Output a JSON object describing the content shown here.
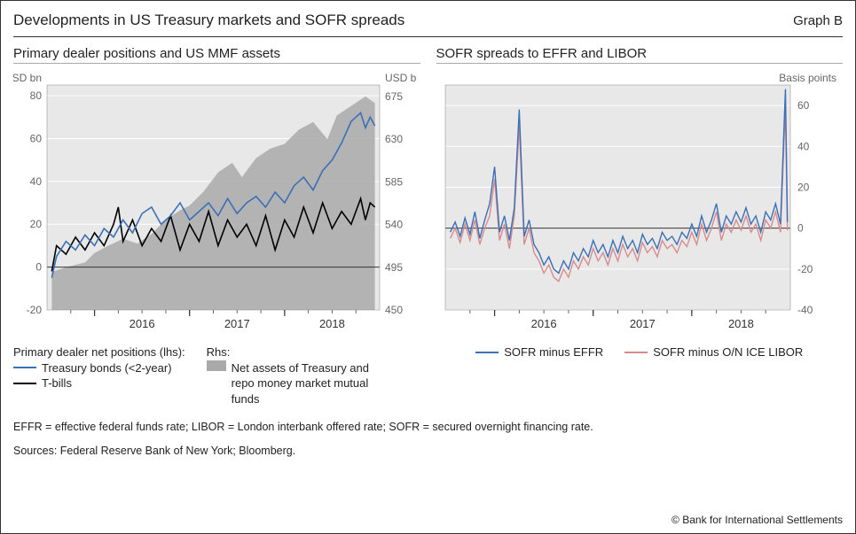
{
  "title": "Developments in US Treasury markets and SOFR spreads",
  "graph_id": "Graph B",
  "left_panel": {
    "title": "Primary dealer positions and US MMF assets",
    "type": "line-area-dual-axis",
    "background_color": "#e8e8e8",
    "grid_color": "#ffffff",
    "zero_line_color": "#333333",
    "axis_font_size": 12,
    "lhs": {
      "label": "USD bn",
      "min": -20,
      "max": 85,
      "ticks": [
        -20,
        0,
        20,
        40,
        60,
        80
      ]
    },
    "rhs": {
      "label": "USD bn",
      "min": 450,
      "max": 687,
      "ticks": [
        450,
        495,
        540,
        585,
        630,
        675
      ]
    },
    "x": {
      "min": 2015.5,
      "max": 2019.0,
      "major_ticks": [
        2016,
        2017,
        2018
      ],
      "minor_step": 0.25
    },
    "series": {
      "area_rhs": {
        "label": "Net assets of Treasury and repo money market mutual funds",
        "color": "#a9a9a9",
        "baseline": 450,
        "points": [
          [
            2015.55,
            490
          ],
          [
            2015.7,
            495
          ],
          [
            2015.9,
            500
          ],
          [
            2016.0,
            510
          ],
          [
            2016.15,
            518
          ],
          [
            2016.3,
            525
          ],
          [
            2016.45,
            520
          ],
          [
            2016.6,
            530
          ],
          [
            2016.75,
            545
          ],
          [
            2016.9,
            555
          ],
          [
            2017.0,
            560
          ],
          [
            2017.15,
            575
          ],
          [
            2017.3,
            595
          ],
          [
            2017.45,
            605
          ],
          [
            2017.55,
            590
          ],
          [
            2017.7,
            610
          ],
          [
            2017.85,
            620
          ],
          [
            2018.0,
            625
          ],
          [
            2018.15,
            640
          ],
          [
            2018.3,
            648
          ],
          [
            2018.45,
            630
          ],
          [
            2018.55,
            655
          ],
          [
            2018.7,
            665
          ],
          [
            2018.85,
            675
          ],
          [
            2018.95,
            668
          ]
        ]
      },
      "treasury_bonds_lhs": {
        "label": "Treasury bonds (<2-year)",
        "color": "#3b6fb6",
        "line_width": 1.6,
        "points": [
          [
            2015.55,
            -5
          ],
          [
            2015.6,
            5
          ],
          [
            2015.7,
            12
          ],
          [
            2015.8,
            8
          ],
          [
            2015.9,
            15
          ],
          [
            2016.0,
            10
          ],
          [
            2016.1,
            18
          ],
          [
            2016.2,
            14
          ],
          [
            2016.3,
            22
          ],
          [
            2016.4,
            16
          ],
          [
            2016.5,
            25
          ],
          [
            2016.6,
            28
          ],
          [
            2016.7,
            20
          ],
          [
            2016.8,
            24
          ],
          [
            2016.9,
            30
          ],
          [
            2017.0,
            22
          ],
          [
            2017.1,
            26
          ],
          [
            2017.2,
            30
          ],
          [
            2017.3,
            24
          ],
          [
            2017.4,
            32
          ],
          [
            2017.5,
            25
          ],
          [
            2017.6,
            30
          ],
          [
            2017.7,
            33
          ],
          [
            2017.8,
            28
          ],
          [
            2017.9,
            35
          ],
          [
            2018.0,
            30
          ],
          [
            2018.1,
            38
          ],
          [
            2018.2,
            42
          ],
          [
            2018.3,
            36
          ],
          [
            2018.4,
            45
          ],
          [
            2018.5,
            50
          ],
          [
            2018.6,
            58
          ],
          [
            2018.7,
            68
          ],
          [
            2018.8,
            72
          ],
          [
            2018.85,
            65
          ],
          [
            2018.9,
            70
          ],
          [
            2018.95,
            66
          ]
        ]
      },
      "tbills_lhs": {
        "label": "T-bills",
        "color": "#000000",
        "line_width": 1.6,
        "points": [
          [
            2015.55,
            -2
          ],
          [
            2015.6,
            10
          ],
          [
            2015.7,
            6
          ],
          [
            2015.8,
            14
          ],
          [
            2015.9,
            8
          ],
          [
            2016.0,
            16
          ],
          [
            2016.1,
            10
          ],
          [
            2016.2,
            20
          ],
          [
            2016.25,
            28
          ],
          [
            2016.3,
            12
          ],
          [
            2016.4,
            22
          ],
          [
            2016.5,
            10
          ],
          [
            2016.6,
            18
          ],
          [
            2016.7,
            12
          ],
          [
            2016.8,
            24
          ],
          [
            2016.9,
            8
          ],
          [
            2017.0,
            20
          ],
          [
            2017.1,
            12
          ],
          [
            2017.2,
            26
          ],
          [
            2017.3,
            10
          ],
          [
            2017.4,
            22
          ],
          [
            2017.5,
            14
          ],
          [
            2017.6,
            20
          ],
          [
            2017.7,
            10
          ],
          [
            2017.8,
            24
          ],
          [
            2017.9,
            8
          ],
          [
            2018.0,
            22
          ],
          [
            2018.1,
            14
          ],
          [
            2018.2,
            28
          ],
          [
            2018.3,
            16
          ],
          [
            2018.4,
            30
          ],
          [
            2018.5,
            18
          ],
          [
            2018.6,
            26
          ],
          [
            2018.7,
            20
          ],
          [
            2018.8,
            32
          ],
          [
            2018.85,
            22
          ],
          [
            2018.9,
            30
          ],
          [
            2018.95,
            28
          ]
        ]
      }
    },
    "legend": {
      "heading_lhs": "Primary dealer net positions (lhs):",
      "heading_rhs": "Rhs:"
    }
  },
  "right_panel": {
    "title": "SOFR spreads to EFFR and LIBOR",
    "type": "line",
    "background_color": "#e8e8e8",
    "grid_color": "#ffffff",
    "zero_line_color": "#333333",
    "rhs": {
      "label": "Basis points",
      "min": -40,
      "max": 70,
      "ticks": [
        -40,
        -20,
        0,
        20,
        40,
        60
      ]
    },
    "x": {
      "min": 2015.5,
      "max": 2019.0,
      "major_ticks": [
        2016,
        2017,
        2018
      ],
      "minor_step": 0.25
    },
    "series": {
      "sofr_effr": {
        "label": "SOFR minus EFFR",
        "color": "#3b6fb6",
        "line_width": 1.4,
        "points": [
          [
            2015.55,
            -2
          ],
          [
            2015.6,
            3
          ],
          [
            2015.65,
            -4
          ],
          [
            2015.7,
            5
          ],
          [
            2015.75,
            -3
          ],
          [
            2015.8,
            8
          ],
          [
            2015.85,
            -5
          ],
          [
            2015.9,
            4
          ],
          [
            2015.95,
            12
          ],
          [
            2016.0,
            30
          ],
          [
            2016.05,
            -2
          ],
          [
            2016.1,
            6
          ],
          [
            2016.15,
            -6
          ],
          [
            2016.2,
            10
          ],
          [
            2016.25,
            58
          ],
          [
            2016.3,
            -4
          ],
          [
            2016.35,
            4
          ],
          [
            2016.4,
            -8
          ],
          [
            2016.45,
            -12
          ],
          [
            2016.5,
            -18
          ],
          [
            2016.55,
            -14
          ],
          [
            2016.6,
            -20
          ],
          [
            2016.65,
            -22
          ],
          [
            2016.7,
            -16
          ],
          [
            2016.75,
            -20
          ],
          [
            2016.8,
            -12
          ],
          [
            2016.85,
            -16
          ],
          [
            2016.9,
            -10
          ],
          [
            2016.95,
            -14
          ],
          [
            2017.0,
            -6
          ],
          [
            2017.05,
            -12
          ],
          [
            2017.1,
            -8
          ],
          [
            2017.15,
            -14
          ],
          [
            2017.2,
            -6
          ],
          [
            2017.25,
            -12
          ],
          [
            2017.3,
            -4
          ],
          [
            2017.35,
            -10
          ],
          [
            2017.4,
            -6
          ],
          [
            2017.45,
            -12
          ],
          [
            2017.5,
            -3
          ],
          [
            2017.55,
            -8
          ],
          [
            2017.6,
            -5
          ],
          [
            2017.65,
            -10
          ],
          [
            2017.7,
            -2
          ],
          [
            2017.75,
            -6
          ],
          [
            2017.8,
            -4
          ],
          [
            2017.85,
            -8
          ],
          [
            2017.9,
            -2
          ],
          [
            2017.95,
            -5
          ],
          [
            2018.0,
            2
          ],
          [
            2018.05,
            -4
          ],
          [
            2018.1,
            6
          ],
          [
            2018.15,
            -2
          ],
          [
            2018.2,
            4
          ],
          [
            2018.25,
            12
          ],
          [
            2018.3,
            -2
          ],
          [
            2018.35,
            6
          ],
          [
            2018.4,
            2
          ],
          [
            2018.45,
            8
          ],
          [
            2018.5,
            3
          ],
          [
            2018.55,
            10
          ],
          [
            2018.6,
            2
          ],
          [
            2018.65,
            6
          ],
          [
            2018.7,
            -2
          ],
          [
            2018.75,
            8
          ],
          [
            2018.8,
            4
          ],
          [
            2018.85,
            12
          ],
          [
            2018.9,
            2
          ],
          [
            2018.95,
            68
          ],
          [
            2018.97,
            3
          ]
        ]
      },
      "sofr_libor": {
        "label": "SOFR minus O/N ICE LIBOR",
        "color": "#d98b8b",
        "line_width": 1.4,
        "points": [
          [
            2015.55,
            -5
          ],
          [
            2015.6,
            0
          ],
          [
            2015.65,
            -7
          ],
          [
            2015.7,
            2
          ],
          [
            2015.75,
            -6
          ],
          [
            2015.8,
            4
          ],
          [
            2015.85,
            -8
          ],
          [
            2015.9,
            0
          ],
          [
            2015.95,
            6
          ],
          [
            2016.0,
            24
          ],
          [
            2016.05,
            -6
          ],
          [
            2016.1,
            2
          ],
          [
            2016.15,
            -10
          ],
          [
            2016.2,
            6
          ],
          [
            2016.25,
            50
          ],
          [
            2016.3,
            -8
          ],
          [
            2016.35,
            0
          ],
          [
            2016.4,
            -12
          ],
          [
            2016.45,
            -16
          ],
          [
            2016.5,
            -22
          ],
          [
            2016.55,
            -18
          ],
          [
            2016.6,
            -24
          ],
          [
            2016.65,
            -26
          ],
          [
            2016.7,
            -20
          ],
          [
            2016.75,
            -24
          ],
          [
            2016.8,
            -16
          ],
          [
            2016.85,
            -20
          ],
          [
            2016.9,
            -14
          ],
          [
            2016.95,
            -18
          ],
          [
            2017.0,
            -10
          ],
          [
            2017.05,
            -16
          ],
          [
            2017.1,
            -12
          ],
          [
            2017.15,
            -18
          ],
          [
            2017.2,
            -10
          ],
          [
            2017.25,
            -16
          ],
          [
            2017.3,
            -8
          ],
          [
            2017.35,
            -14
          ],
          [
            2017.4,
            -10
          ],
          [
            2017.45,
            -16
          ],
          [
            2017.5,
            -7
          ],
          [
            2017.55,
            -12
          ],
          [
            2017.6,
            -9
          ],
          [
            2017.65,
            -14
          ],
          [
            2017.7,
            -6
          ],
          [
            2017.75,
            -10
          ],
          [
            2017.8,
            -8
          ],
          [
            2017.85,
            -12
          ],
          [
            2017.9,
            -6
          ],
          [
            2017.95,
            -9
          ],
          [
            2018.0,
            -2
          ],
          [
            2018.05,
            -8
          ],
          [
            2018.1,
            2
          ],
          [
            2018.15,
            -6
          ],
          [
            2018.2,
            0
          ],
          [
            2018.25,
            8
          ],
          [
            2018.3,
            -6
          ],
          [
            2018.35,
            2
          ],
          [
            2018.4,
            -2
          ],
          [
            2018.45,
            4
          ],
          [
            2018.5,
            -1
          ],
          [
            2018.55,
            6
          ],
          [
            2018.6,
            -2
          ],
          [
            2018.65,
            2
          ],
          [
            2018.7,
            -6
          ],
          [
            2018.75,
            4
          ],
          [
            2018.8,
            0
          ],
          [
            2018.85,
            8
          ],
          [
            2018.9,
            -2
          ],
          [
            2018.95,
            60
          ],
          [
            2018.97,
            -1
          ]
        ]
      }
    }
  },
  "footnote_abbr": "EFFR = effective federal funds rate; LIBOR = London interbank offered rate; SOFR = secured overnight financing rate.",
  "footnote_sources": "Sources: Federal Reserve Bank of New York; Bloomberg.",
  "copyright": "© Bank for International Settlements"
}
